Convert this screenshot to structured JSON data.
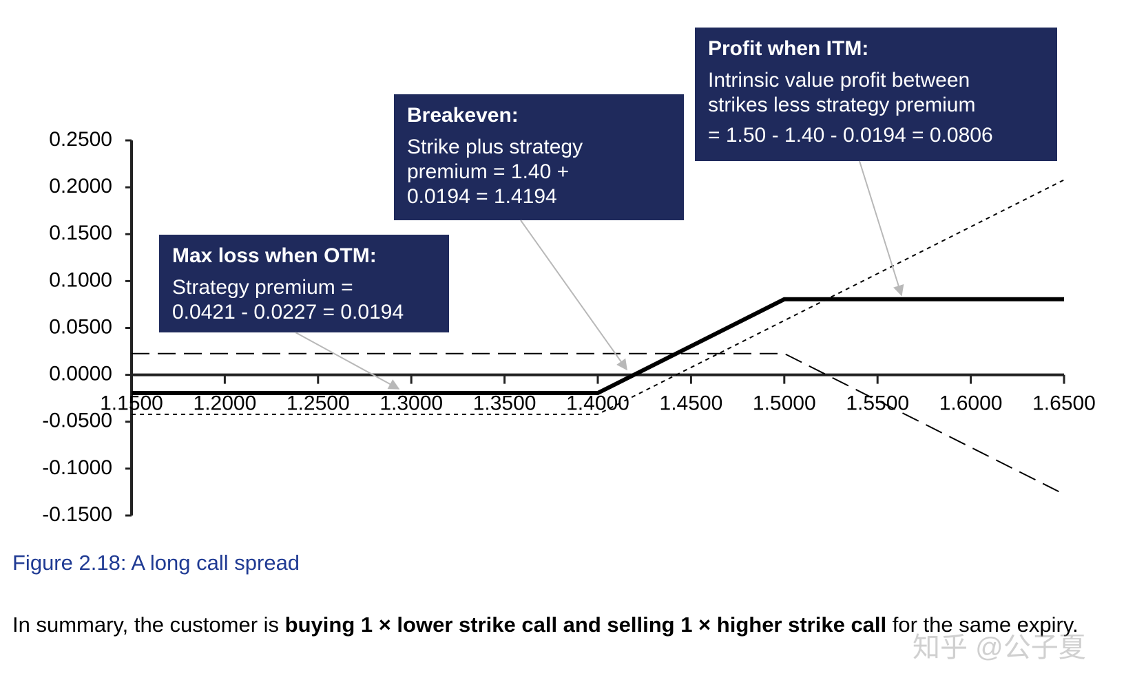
{
  "chart_data": {
    "type": "line",
    "x": [
      1.15,
      1.4,
      1.5,
      1.65
    ],
    "series": [
      {
        "color": "#000000",
        "style": "solid",
        "values": [
          -0.0194,
          -0.0194,
          0.0806,
          0.0806
        ]
      },
      {
        "color": "#000000",
        "style": "dashed",
        "values": [
          0.0227,
          0.0227,
          0.0227,
          -0.1273
        ]
      },
      {
        "color": "#000000",
        "style": "dotted",
        "values": [
          -0.0421,
          -0.0421,
          0.0579,
          0.2079
        ]
      }
    ],
    "xlim": [
      1.15,
      1.65
    ],
    "xticks": [
      {
        "value": 1.15,
        "label": "1.1500"
      },
      {
        "value": 1.2,
        "label": "1.2000"
      },
      {
        "value": 1.25,
        "label": "1.2500"
      },
      {
        "value": 1.3,
        "label": "1.3000"
      },
      {
        "value": 1.35,
        "label": "1.3500"
      },
      {
        "value": 1.4,
        "label": "1.4000"
      },
      {
        "value": 1.45,
        "label": "1.4500"
      },
      {
        "value": 1.5,
        "label": "1.5000"
      },
      {
        "value": 1.55,
        "label": "1.5500"
      },
      {
        "value": 1.6,
        "label": "1.6000"
      },
      {
        "value": 1.65,
        "label": "1.6500"
      }
    ],
    "ylim": [
      -0.15,
      0.25
    ],
    "yticks": [
      {
        "value": 0.25,
        "label": "0.2500"
      },
      {
        "value": 0.2,
        "label": "0.2000"
      },
      {
        "value": 0.15,
        "label": "0.1500"
      },
      {
        "value": 0.1,
        "label": "0.1000"
      },
      {
        "value": 0.05,
        "label": "0.0500"
      },
      {
        "value": 0,
        "label": "0.0000"
      },
      {
        "value": -0.05,
        "label": "-0.0500"
      },
      {
        "value": -0.1,
        "label": "-0.1000"
      },
      {
        "value": -0.15,
        "label": "-0.1500"
      }
    ],
    "annotations": [
      {
        "title": "Max loss when OTM:",
        "lines": [
          "Strategy premium =",
          "0.0421 - 0.0227 = 0.0194"
        ]
      },
      {
        "title": "Breakeven:",
        "lines": [
          "Strike plus strategy",
          "premium = 1.40 +",
          "0.0194 = 1.4194"
        ]
      },
      {
        "title": "Profit when ITM:",
        "lines": [
          "Intrinsic value profit between",
          "strikes less strategy premium",
          "= 1.50 - 1.40 - 0.0194 = 0.0806"
        ]
      }
    ]
  },
  "caption": "Figure 2.18: A long call spread",
  "summary": [
    "In summary, the customer is ",
    "buying 1 × lower strike call and selling 1 × higher strike call",
    " for the same expiry."
  ],
  "watermark": "知乎 @公子夏"
}
